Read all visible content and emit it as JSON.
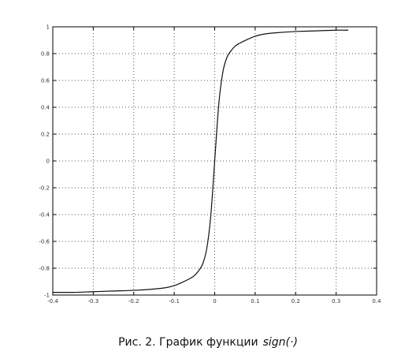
{
  "chart_data": {
    "type": "line",
    "title": "",
    "xlabel": "",
    "ylabel": "",
    "xlim": [
      -0.4,
      0.4
    ],
    "ylim": [
      -1,
      1
    ],
    "grid": true,
    "x_ticks": [
      -0.4,
      -0.3,
      -0.2,
      -0.1,
      0,
      0.1,
      0.2,
      0.3,
      0.4
    ],
    "x_tick_labels": [
      "-0.4",
      "-0.3",
      "-0.2",
      "-0.1",
      "0",
      "0.1",
      "0.2",
      "0.3",
      "0.4"
    ],
    "y_ticks": [
      -1,
      -0.8,
      -0.6,
      -0.4,
      -0.2,
      0,
      0.2,
      0.4,
      0.6,
      0.8,
      1
    ],
    "y_tick_labels": [
      "-1",
      "-0.8",
      "-0.6",
      "-0.4",
      "-0.2",
      "0",
      "0.2",
      "0.4",
      "0.6",
      "0.8",
      "1"
    ],
    "series": [
      {
        "x": [
          -0.4,
          -0.35,
          -0.3,
          -0.25,
          -0.2,
          -0.15,
          -0.12,
          -0.1,
          -0.08,
          -0.06,
          -0.05,
          -0.04,
          -0.03,
          -0.02,
          -0.01,
          0,
          0.01,
          0.02,
          0.03,
          0.04,
          0.05,
          0.06,
          0.08,
          0.1,
          0.12,
          0.15,
          0.2,
          0.25,
          0.3,
          0.33
        ],
        "y": [
          -0.98,
          -0.98,
          -0.975,
          -0.97,
          -0.965,
          -0.955,
          -0.945,
          -0.93,
          -0.905,
          -0.875,
          -0.855,
          -0.82,
          -0.77,
          -0.66,
          -0.42,
          0,
          0.42,
          0.66,
          0.77,
          0.82,
          0.855,
          0.875,
          0.905,
          0.93,
          0.945,
          0.955,
          0.965,
          0.97,
          0.975,
          0.975
        ],
        "color": "#111111"
      }
    ]
  },
  "caption": {
    "text": "Рис. 2. График функции",
    "function": "sign(·)"
  }
}
